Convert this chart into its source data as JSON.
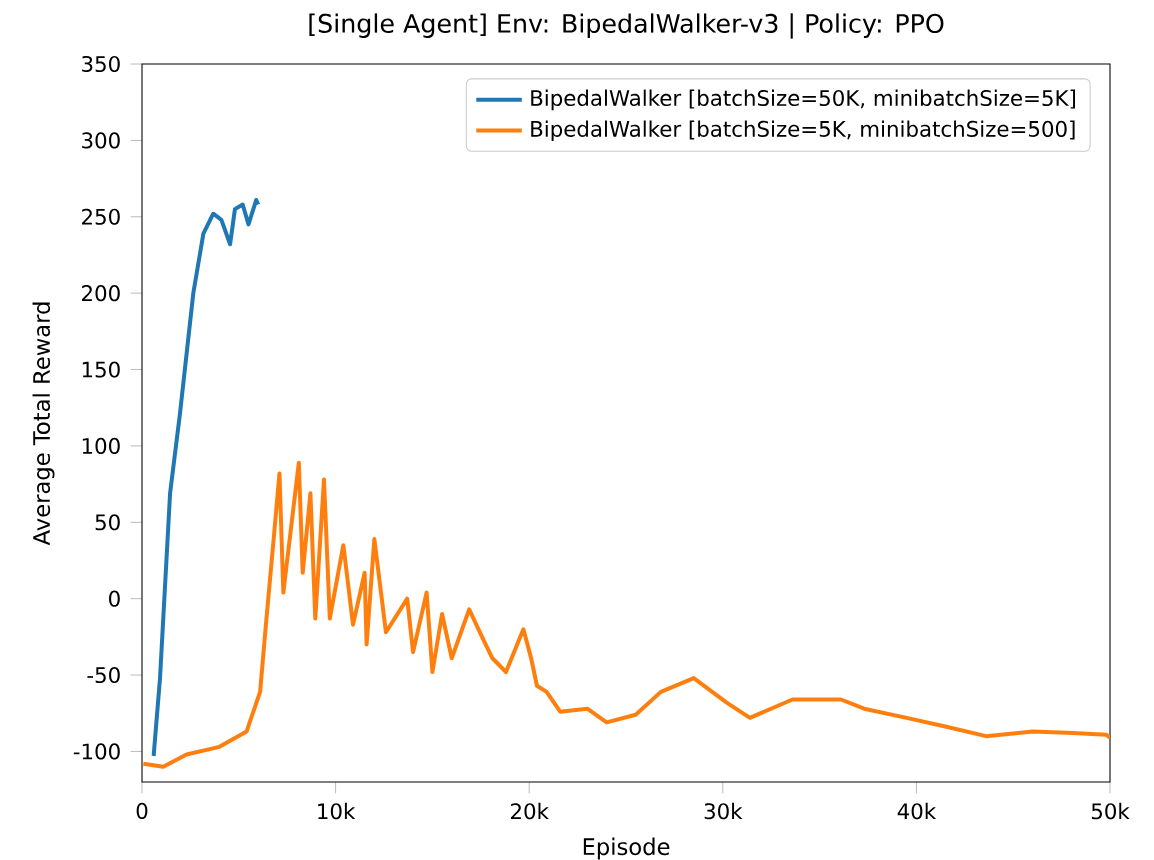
{
  "chart_data": {
    "type": "line",
    "title": "[Single Agent] Env: BipedalWalker-v3 | Policy: PPO",
    "xlabel": "Episode",
    "ylabel": "Average Total Reward",
    "xlim": [
      0,
      50000
    ],
    "ylim": [
      -120,
      350
    ],
    "xticks": [
      0,
      {
        "value": 10000,
        "label": "10k"
      },
      {
        "value": 20000,
        "label": "20k"
      },
      {
        "value": 30000,
        "label": "30k"
      },
      {
        "value": 40000,
        "label": "40k"
      },
      {
        "value": 50000,
        "label": "50k"
      }
    ],
    "yticks": [
      -100,
      -50,
      0,
      50,
      100,
      150,
      200,
      250,
      300,
      350
    ],
    "legend": "top right",
    "grid": false,
    "marker": "none",
    "line_style": "solid",
    "series": [
      {
        "name": "BipedalWalker [batchSize=50K, minibatchSize=5K]",
        "color": "#1f77b4",
        "x": [
          600,
          930,
          1450,
          1960,
          2300,
          2650,
          3170,
          3680,
          4100,
          4550,
          4800,
          5200,
          5500,
          5900,
          6000
        ],
        "values": [
          -103,
          -52,
          69,
          121,
          160,
          200,
          239,
          252,
          248,
          232,
          255,
          258,
          245,
          261,
          258
        ]
      },
      {
        "name": "BipedalWalker [batchSize=5K, minibatchSize=500]",
        "color": "#ff7f0e",
        "x": [
          70,
          1100,
          2300,
          4000,
          5400,
          6100,
          6400,
          6800,
          7100,
          7300,
          8100,
          8300,
          8700,
          8950,
          9400,
          9700,
          10400,
          10900,
          11500,
          11600,
          12000,
          12600,
          13700,
          14000,
          14700,
          15000,
          15500,
          16000,
          16900,
          17600,
          18100,
          18800,
          19700,
          20100,
          20400,
          20900,
          21600,
          23000,
          24000,
          25500,
          26800,
          28500,
          30200,
          31400,
          33600,
          36100,
          37300,
          39500,
          41600,
          43600,
          46000,
          48100,
          49800,
          50000
        ],
        "values": [
          -108,
          -110,
          -102,
          -97,
          -87,
          -61,
          -17,
          39,
          82,
          4,
          89,
          17,
          69,
          -13,
          78,
          -13,
          35,
          -17,
          17,
          -30,
          39,
          -22,
          0,
          -35,
          4,
          -48,
          -10,
          -39,
          -7,
          -26,
          -39,
          -48,
          -20,
          -39,
          -57,
          -61,
          -74,
          -72,
          -81,
          -76,
          -61,
          -52,
          -68,
          -78,
          -66,
          -66,
          -72,
          -78,
          -84,
          -90,
          -87,
          -88,
          -89,
          -91
        ]
      }
    ]
  }
}
